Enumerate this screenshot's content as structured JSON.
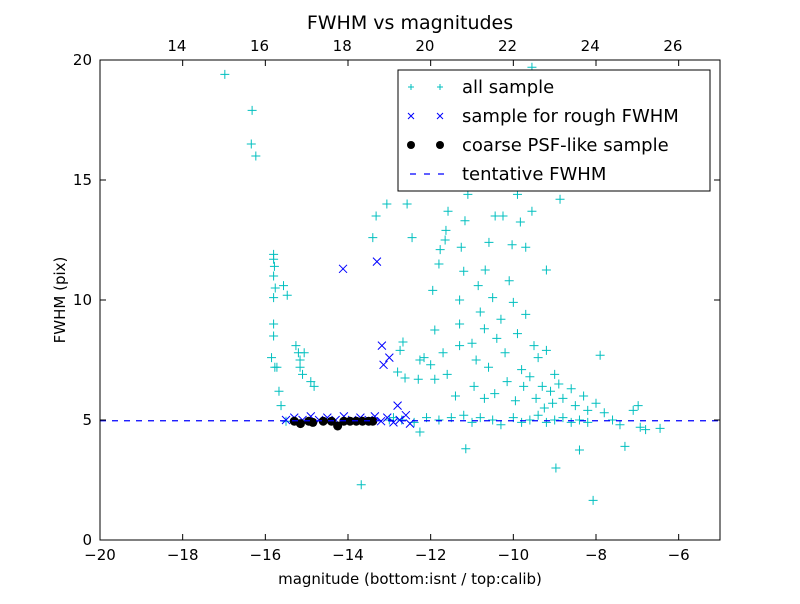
{
  "chart_data": {
    "type": "scatter",
    "title": "FWHM vs magnitudes",
    "xlabel": "magnitude (bottom:isnt / top:calib)",
    "ylabel": "FWHM (pix)",
    "xlim": [
      -20,
      -5
    ],
    "ylim": [
      0,
      20
    ],
    "top_xlim": [
      12.14,
      27.14
    ],
    "xticks": [
      -20,
      -18,
      -16,
      -14,
      -12,
      -10,
      -8,
      -6
    ],
    "xtick_labels": [
      "−20",
      "−18",
      "−16",
      "−14",
      "−12",
      "−10",
      "−8",
      "−6"
    ],
    "yticks": [
      0,
      5,
      10,
      15,
      20
    ],
    "ytick_labels": [
      "0",
      "5",
      "10",
      "15",
      "20"
    ],
    "top_xticks": [
      14,
      16,
      18,
      20,
      22,
      24,
      26
    ],
    "top_xtick_labels": [
      "14",
      "16",
      "18",
      "20",
      "22",
      "24",
      "26"
    ],
    "grid": false,
    "legend_position": "top-right",
    "legend": [
      {
        "label": "all sample",
        "marker": "plus",
        "color": "#00bfbf"
      },
      {
        "label": "sample for rough FWHM",
        "marker": "x",
        "color": "#0000ff"
      },
      {
        "label": "coarse PSF-like sample",
        "marker": "dot",
        "color": "#000000"
      },
      {
        "label": "tentative FWHM",
        "marker": "dashed-line",
        "color": "#0000ff"
      }
    ],
    "tentative_fwhm": 4.97,
    "series": [
      {
        "name": "all sample",
        "color": "#00bfbf",
        "points": [
          [
            -16.98,
            19.4
          ],
          [
            -16.32,
            17.9
          ],
          [
            -16.34,
            16.5
          ],
          [
            -16.23,
            16.0
          ],
          [
            -15.8,
            11.9
          ],
          [
            -15.8,
            11.7
          ],
          [
            -15.78,
            11.4
          ],
          [
            -15.8,
            11.0
          ],
          [
            -15.76,
            10.5
          ],
          [
            -15.8,
            10.1
          ],
          [
            -15.56,
            10.6
          ],
          [
            -15.47,
            10.2
          ],
          [
            -15.8,
            9.0
          ],
          [
            -15.8,
            8.5
          ],
          [
            -15.85,
            7.6
          ],
          [
            -15.77,
            7.2
          ],
          [
            -15.72,
            7.2
          ],
          [
            -15.67,
            6.2
          ],
          [
            -15.62,
            5.6
          ],
          [
            -15.26,
            8.1
          ],
          [
            -15.2,
            7.8
          ],
          [
            -15.16,
            7.5
          ],
          [
            -15.06,
            7.8
          ],
          [
            -15.16,
            7.2
          ],
          [
            -15.1,
            6.9
          ],
          [
            -14.9,
            6.6
          ],
          [
            -14.82,
            6.4
          ],
          [
            -13.68,
            2.3
          ],
          [
            -13.32,
            13.5
          ],
          [
            -13.4,
            12.6
          ],
          [
            -13.06,
            14.0
          ],
          [
            -12.57,
            14.0
          ],
          [
            -12.45,
            12.6
          ],
          [
            -12.67,
            8.25
          ],
          [
            -12.74,
            7.9
          ],
          [
            -12.8,
            7.0
          ],
          [
            -12.62,
            6.75
          ],
          [
            -12.26,
            7.5
          ],
          [
            -12.16,
            7.6
          ],
          [
            -11.9,
            8.75
          ],
          [
            -11.95,
            10.4
          ],
          [
            -11.8,
            11.5
          ],
          [
            -11.77,
            12.1
          ],
          [
            -11.65,
            12.5
          ],
          [
            -11.58,
            13.7
          ],
          [
            -11.63,
            12.9
          ],
          [
            -11.17,
            13.3
          ],
          [
            -11.1,
            14.4
          ],
          [
            -11.26,
            12.2
          ],
          [
            -11.2,
            11.2
          ],
          [
            -11.3,
            10.0
          ],
          [
            -11.3,
            9.0
          ],
          [
            -11.05,
            14.8
          ],
          [
            -10.85,
            10.6
          ],
          [
            -10.68,
            11.25
          ],
          [
            -10.59,
            12.4
          ],
          [
            -10.44,
            13.5
          ],
          [
            -10.25,
            13.5
          ],
          [
            -9.9,
            14.4
          ],
          [
            -9.83,
            13.25
          ],
          [
            -9.55,
            13.7
          ],
          [
            -8.87,
            14.2
          ],
          [
            -9.2,
            11.25
          ],
          [
            -9.7,
            12.2
          ],
          [
            -10.03,
            12.3
          ],
          [
            -9.55,
            19.7
          ],
          [
            -8.97,
            3.0
          ],
          [
            -8.4,
            3.75
          ],
          [
            -8.07,
            1.65
          ],
          [
            -11.15,
            3.8
          ],
          [
            -12.26,
            4.5
          ],
          [
            -7.8,
            5.3
          ],
          [
            -7.6,
            5.0
          ],
          [
            -7.42,
            4.8
          ],
          [
            -7.3,
            3.9
          ],
          [
            -7.1,
            5.4
          ],
          [
            -6.98,
            5.6
          ],
          [
            -6.93,
            4.7
          ],
          [
            -6.8,
            4.6
          ],
          [
            -6.45,
            4.65
          ],
          [
            -11.0,
            8.2
          ],
          [
            -10.9,
            7.5
          ],
          [
            -10.8,
            9.5
          ],
          [
            -10.7,
            8.8
          ],
          [
            -10.6,
            7.2
          ],
          [
            -10.5,
            10.1
          ],
          [
            -10.4,
            8.4
          ],
          [
            -10.3,
            9.2
          ],
          [
            -10.2,
            7.8
          ],
          [
            -10.1,
            10.8
          ],
          [
            -10.0,
            9.9
          ],
          [
            -9.9,
            8.6
          ],
          [
            -9.8,
            7.1
          ],
          [
            -9.7,
            9.4
          ],
          [
            -9.6,
            6.8
          ],
          [
            -9.5,
            8.1
          ],
          [
            -9.4,
            7.6
          ],
          [
            -9.3,
            6.4
          ],
          [
            -9.2,
            7.9
          ],
          [
            -9.1,
            6.2
          ],
          [
            -9.0,
            6.9
          ],
          [
            -8.9,
            6.5
          ],
          [
            -8.8,
            5.9
          ],
          [
            -8.6,
            6.3
          ],
          [
            -8.5,
            5.6
          ],
          [
            -8.3,
            6.0
          ],
          [
            -8.2,
            5.4
          ],
          [
            -8.0,
            5.7
          ],
          [
            -7.9,
            7.7
          ],
          [
            -10.45,
            6.1
          ],
          [
            -10.15,
            6.6
          ],
          [
            -9.95,
            5.8
          ],
          [
            -9.75,
            6.4
          ],
          [
            -9.45,
            5.9
          ],
          [
            -9.25,
            5.5
          ],
          [
            -9.05,
            5.7
          ],
          [
            -10.7,
            5.9
          ],
          [
            -10.95,
            6.4
          ],
          [
            -11.2,
            5.2
          ],
          [
            -11.5,
            5.1
          ],
          [
            -11.8,
            5.0
          ],
          [
            -12.1,
            5.1
          ],
          [
            -12.4,
            4.9
          ],
          [
            -11.0,
            4.9
          ],
          [
            -10.8,
            5.1
          ],
          [
            -10.5,
            5.0
          ],
          [
            -10.3,
            4.8
          ],
          [
            -10.0,
            5.1
          ],
          [
            -9.8,
            4.9
          ],
          [
            -9.6,
            5.0
          ],
          [
            -9.4,
            5.2
          ],
          [
            -9.2,
            4.9
          ],
          [
            -9.0,
            5.0
          ],
          [
            -8.8,
            5.1
          ],
          [
            -8.6,
            4.9
          ],
          [
            -8.4,
            5.0
          ],
          [
            -8.2,
            4.9
          ],
          [
            -11.6,
            6.9
          ],
          [
            -11.4,
            6.0
          ],
          [
            -11.9,
            6.7
          ],
          [
            -12.0,
            7.3
          ],
          [
            -11.7,
            7.8
          ],
          [
            -12.3,
            6.7
          ],
          [
            -11.3,
            8.1
          ],
          [
            -15.5,
            4.95
          ],
          [
            -13.0,
            5.0
          ],
          [
            -12.9,
            5.1
          ],
          [
            -12.7,
            5.0
          ]
        ]
      },
      {
        "name": "sample for rough FWHM",
        "color": "#0000ff",
        "points": [
          [
            -14.12,
            11.3
          ],
          [
            -13.3,
            11.6
          ],
          [
            -13.18,
            8.1
          ],
          [
            -13.0,
            7.6
          ],
          [
            -13.14,
            7.3
          ],
          [
            -12.8,
            5.6
          ],
          [
            -15.5,
            5.0
          ],
          [
            -15.3,
            5.1
          ],
          [
            -15.1,
            5.0
          ],
          [
            -14.9,
            5.15
          ],
          [
            -14.7,
            5.0
          ],
          [
            -14.5,
            5.1
          ],
          [
            -14.3,
            5.0
          ],
          [
            -14.1,
            5.15
          ],
          [
            -13.9,
            5.0
          ],
          [
            -13.7,
            5.1
          ],
          [
            -13.5,
            5.0
          ],
          [
            -13.35,
            5.15
          ],
          [
            -13.2,
            4.95
          ],
          [
            -13.05,
            5.1
          ],
          [
            -12.9,
            4.9
          ],
          [
            -12.75,
            5.0
          ],
          [
            -12.6,
            5.2
          ],
          [
            -12.5,
            4.85
          ]
        ]
      },
      {
        "name": "coarse PSF-like sample",
        "color": "#000000",
        "points": [
          [
            -15.3,
            4.95
          ],
          [
            -15.15,
            4.85
          ],
          [
            -14.95,
            4.95
          ],
          [
            -14.85,
            4.9
          ],
          [
            -14.6,
            4.95
          ],
          [
            -14.4,
            4.95
          ],
          [
            -14.25,
            4.75
          ],
          [
            -14.1,
            4.95
          ],
          [
            -13.95,
            4.95
          ],
          [
            -13.8,
            4.95
          ],
          [
            -13.65,
            4.95
          ],
          [
            -13.5,
            4.95
          ],
          [
            -13.4,
            4.95
          ]
        ]
      }
    ]
  }
}
